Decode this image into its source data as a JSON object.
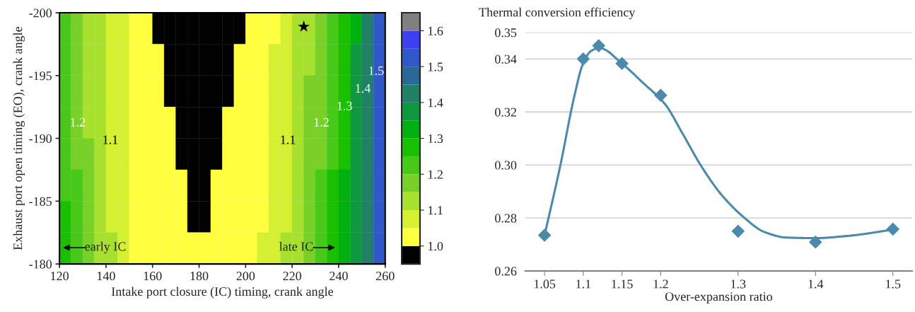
{
  "chart_data": [
    {
      "type": "heatmap",
      "xlabel": "Intake port closure (IC) timing, crank angle",
      "ylabel": "Exhaust port open timing (EO), crank angle",
      "x": [
        122.5,
        127.5,
        132.5,
        137.5,
        142.5,
        147.5,
        152.5,
        157.5,
        162.5,
        167.5,
        172.5,
        177.5,
        182.5,
        187.5,
        192.5,
        197.5,
        202.5,
        207.5,
        212.5,
        217.5,
        222.5,
        227.5,
        232.5,
        237.5,
        242.5,
        247.5,
        252.5,
        257.5
      ],
      "y": [
        -198.75,
        -196.25,
        -193.75,
        -191.25,
        -188.75,
        -186.25,
        -183.75,
        -181.25
      ],
      "cells": [
        [
          1.22,
          1.17,
          1.12,
          1.12,
          1.07,
          1.07,
          1.02,
          1.02,
          0.98,
          0.98,
          0.98,
          0.98,
          0.98,
          0.98,
          0.98,
          0.98,
          1.02,
          1.02,
          1.02,
          1.07,
          1.12,
          1.12,
          1.17,
          1.22,
          1.27,
          1.32,
          1.42,
          1.52
        ],
        [
          1.22,
          1.17,
          1.12,
          1.12,
          1.07,
          1.07,
          1.02,
          1.02,
          1.02,
          0.98,
          0.98,
          0.98,
          0.98,
          0.98,
          0.98,
          1.02,
          1.02,
          1.02,
          1.07,
          1.07,
          1.12,
          1.12,
          1.17,
          1.22,
          1.27,
          1.37,
          1.42,
          1.52
        ],
        [
          1.22,
          1.17,
          1.12,
          1.12,
          1.07,
          1.07,
          1.02,
          1.02,
          1.02,
          0.98,
          0.98,
          0.98,
          0.98,
          0.98,
          0.98,
          1.02,
          1.02,
          1.02,
          1.07,
          1.07,
          1.12,
          1.17,
          1.17,
          1.22,
          1.27,
          1.37,
          1.42,
          1.52
        ],
        [
          1.22,
          1.17,
          1.12,
          1.12,
          1.07,
          1.07,
          1.02,
          1.02,
          1.02,
          1.02,
          0.98,
          0.98,
          0.98,
          0.98,
          1.02,
          1.02,
          1.02,
          1.02,
          1.07,
          1.07,
          1.12,
          1.17,
          1.17,
          1.22,
          1.27,
          1.37,
          1.42,
          1.52
        ],
        [
          1.22,
          1.17,
          1.17,
          1.12,
          1.07,
          1.07,
          1.02,
          1.02,
          1.02,
          1.02,
          0.98,
          0.98,
          0.98,
          0.98,
          1.02,
          1.02,
          1.02,
          1.02,
          1.07,
          1.07,
          1.12,
          1.17,
          1.17,
          1.22,
          1.27,
          1.37,
          1.42,
          1.52
        ],
        [
          1.22,
          1.22,
          1.17,
          1.12,
          1.07,
          1.07,
          1.02,
          1.02,
          1.02,
          1.02,
          1.02,
          0.98,
          0.98,
          1.02,
          1.02,
          1.02,
          1.02,
          1.02,
          1.07,
          1.07,
          1.12,
          1.17,
          1.22,
          1.27,
          1.32,
          1.37,
          1.42,
          1.52
        ],
        [
          1.27,
          1.22,
          1.17,
          1.12,
          1.07,
          1.07,
          1.02,
          1.02,
          1.02,
          1.02,
          1.02,
          0.98,
          0.98,
          1.02,
          1.02,
          1.02,
          1.02,
          1.02,
          1.07,
          1.07,
          1.12,
          1.17,
          1.22,
          1.27,
          1.32,
          1.37,
          1.42,
          1.52
        ],
        [
          1.27,
          1.22,
          1.17,
          1.12,
          1.12,
          1.07,
          1.02,
          1.02,
          1.02,
          1.02,
          1.02,
          1.02,
          1.02,
          1.02,
          1.02,
          1.02,
          1.02,
          1.07,
          1.07,
          1.12,
          1.12,
          1.17,
          1.22,
          1.27,
          1.32,
          1.37,
          1.42,
          1.52
        ]
      ],
      "colors": [
        "#000000",
        "#ffff40",
        "#d4f030",
        "#a8e030",
        "#78d028",
        "#48c818",
        "#18c000",
        "#00b010",
        "#109840",
        "#208068",
        "#2a6898",
        "#3058c8",
        "#3c40f0",
        "#808080"
      ],
      "clim": [
        0.95,
        1.65
      ],
      "cticks": [
        {
          "value": 1.0,
          "label": "1.0"
        },
        1.1,
        1.2,
        1.3,
        1.4,
        1.5,
        1.6
      ],
      "xlim": [
        120,
        260
      ],
      "xticks": [
        120,
        140,
        160,
        180,
        200,
        220,
        240,
        260
      ],
      "ylim": [
        -180,
        -200
      ],
      "yticks": [
        -200,
        -195,
        -190,
        -185,
        -180
      ],
      "series": [
        {
          "type": "scatter",
          "x": [
            225
          ],
          "values": [
            -198.9
          ],
          "color": "#000000",
          "marker": "star"
        }
      ],
      "annotations": [
        "1.2",
        "1.1",
        "1.1",
        "1.2",
        "1.3",
        "1.4",
        "1.5",
        "early IC",
        "late IC"
      ]
    },
    {
      "type": "scatter",
      "xlabel": "Over-expansion ratio",
      "ylabel": "Thermal conversion efficiency",
      "xlim": [
        1.025,
        1.525
      ],
      "xticks": [
        1.05,
        1.1,
        1.15,
        1.2,
        1.3,
        1.4,
        1.5
      ],
      "ylim": [
        0.26,
        0.35
      ],
      "yticks": [
        0.26,
        0.28,
        {
          "value": 0.3,
          "label": "0.30"
        },
        0.32,
        0.34,
        0.35
      ],
      "grid": "y",
      "legend": false,
      "series": [
        {
          "type": "scatter",
          "x": [
            1.05,
            1.1,
            1.12,
            1.15,
            1.2,
            1.3,
            1.4,
            1.5
          ],
          "values": [
            0.2735,
            0.34,
            0.345,
            0.3383,
            0.3263,
            0.275,
            0.2709,
            0.2758
          ],
          "color": "#4a8aaa",
          "marker": "diamond"
        },
        {
          "type": "line",
          "x": [
            1.05,
            1.07,
            1.0885,
            1.099,
            1.11,
            1.121,
            1.151,
            1.176,
            1.206,
            1.228,
            1.253,
            1.279,
            1.308,
            1.334,
            1.363,
            1.4,
            1.444,
            1.5
          ],
          "values": [
            0.2735,
            0.2993,
            0.326,
            0.3377,
            0.343,
            0.3441,
            0.338,
            0.3313,
            0.3228,
            0.312,
            0.2993,
            0.2886,
            0.2801,
            0.2747,
            0.2726,
            0.2724,
            0.2733,
            0.2756
          ],
          "color": "#4a8aaa"
        }
      ]
    }
  ]
}
